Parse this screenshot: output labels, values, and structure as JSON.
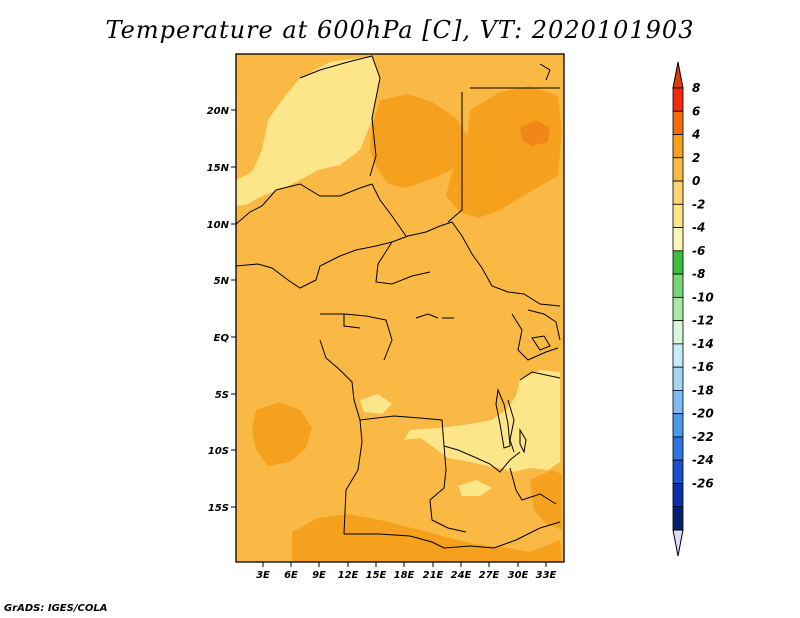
{
  "title": "Temperature at 600hPa [C], VT: 2020101903",
  "footer": "GrADS: IGES/COLA",
  "map": {
    "lat_labels": [
      "20N",
      "15N",
      "10N",
      "5N",
      "EQ",
      "5S",
      "10S",
      "15S"
    ],
    "lon_labels": [
      "3E",
      "6E",
      "9E",
      "12E",
      "15E",
      "18E",
      "21E",
      "24E",
      "27E",
      "30E",
      "33E"
    ],
    "colors": {
      "background_fill": "#f9b944",
      "warm_fill": "#f6a11e",
      "cool_fill": "#fde58a",
      "boundary": "#000000"
    }
  },
  "colorbar": {
    "labels": [
      "8",
      "6",
      "4",
      "2",
      "0",
      "-2",
      "-4",
      "-6",
      "-8",
      "-10",
      "-12",
      "-14",
      "-16",
      "-18",
      "-20",
      "-22",
      "-24",
      "-26"
    ],
    "colors": [
      "#f52a0a",
      "#f66a0a",
      "#f6a11e",
      "#f9b944",
      "#fdd570",
      "#fde58a",
      "#fef6b8",
      "#3cbf3c",
      "#78d878",
      "#a9eaa3",
      "#d7f8dc",
      "#c6eefa",
      "#a3d6f5",
      "#7cbcf0",
      "#4a9ae8",
      "#2d74de",
      "#1c50c8",
      "#0c30a8",
      "#081e6e"
    ],
    "top_arrow_color": "#e23a0c",
    "bottom_arrow_color": "#dcdcf6"
  }
}
